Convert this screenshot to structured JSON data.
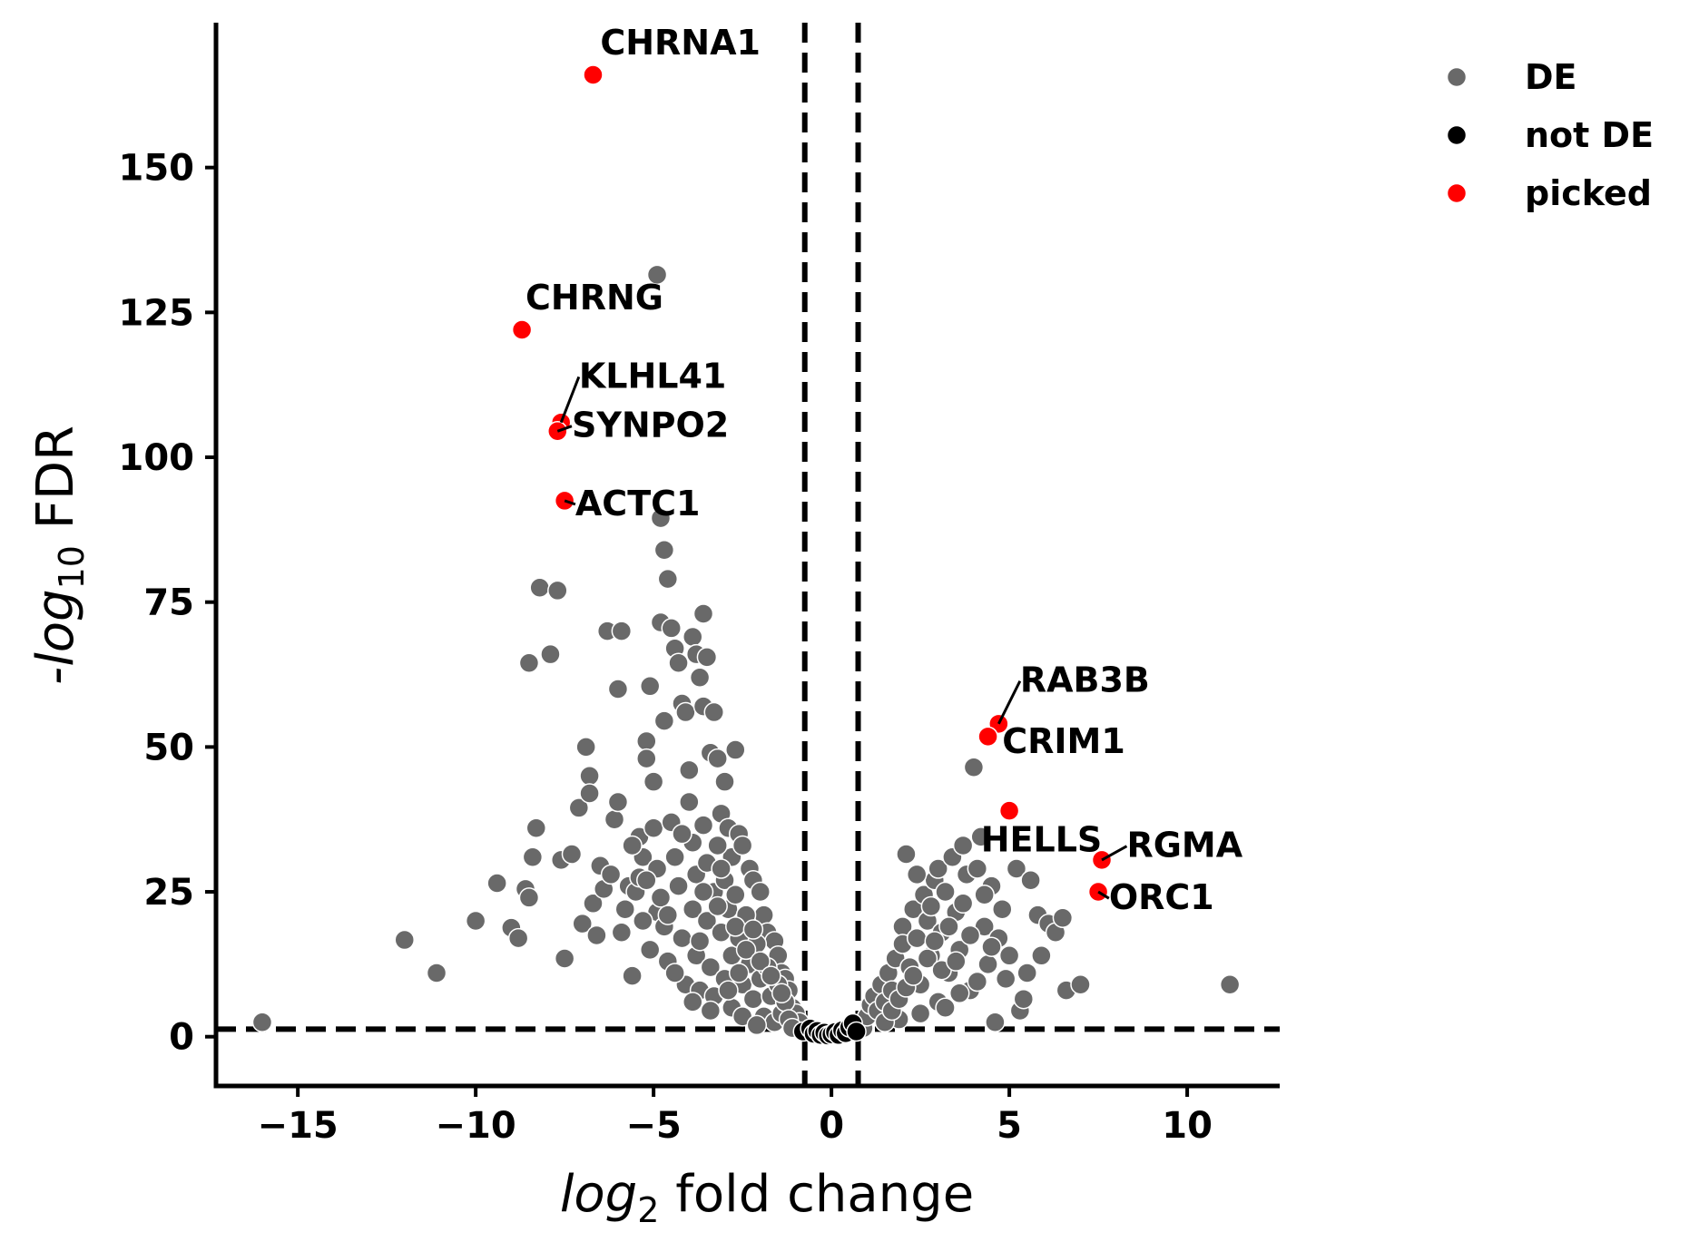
{
  "chart_data": {
    "type": "scatter",
    "xlabel_base": "log",
    "xlabel_sub": "2",
    "xlabel_rest": " fold change",
    "ylabel_prefix": "-",
    "ylabel_base": "log",
    "ylabel_sub": "10",
    "ylabel_rest": " FDR",
    "xlim": [
      -17.3,
      12.6
    ],
    "ylim": [
      -8.5,
      175
    ],
    "xticks": [
      {
        "value": -15,
        "label": "−15"
      },
      {
        "value": -10,
        "label": "−10"
      },
      {
        "value": -5,
        "label": "−5"
      },
      {
        "value": 0,
        "label": "0"
      },
      {
        "value": 5,
        "label": "5"
      },
      {
        "value": 10,
        "label": "10"
      }
    ],
    "yticks": [
      {
        "value": 0,
        "label": "0"
      },
      {
        "value": 25,
        "label": "25"
      },
      {
        "value": 50,
        "label": "50"
      },
      {
        "value": 75,
        "label": "75"
      },
      {
        "value": 100,
        "label": "100"
      },
      {
        "value": 125,
        "label": "125"
      },
      {
        "value": 150,
        "label": "150"
      }
    ],
    "thresholds": {
      "x": [
        -0.75,
        0.75
      ],
      "y": 1.3
    },
    "legend": {
      "position": "upper-right-outside",
      "entries": [
        {
          "name": "DE",
          "color": "#696969"
        },
        {
          "name": "not DE",
          "color": "#000000"
        },
        {
          "name": "picked",
          "color": "#ff0000"
        }
      ]
    },
    "series": [
      {
        "name": "DE",
        "color": "#696969",
        "points": [
          [
            -16.0,
            2.5
          ],
          [
            -12.0,
            16.7
          ],
          [
            -11.1,
            11.0
          ],
          [
            -10.0,
            20.0
          ],
          [
            -9.4,
            26.5
          ],
          [
            -9.0,
            18.8
          ],
          [
            -8.8,
            17.0
          ],
          [
            -8.6,
            25.5
          ],
          [
            -8.5,
            24.0
          ],
          [
            -8.4,
            31.0
          ],
          [
            -8.3,
            36.0
          ],
          [
            -8.2,
            77.5
          ],
          [
            -8.5,
            64.5
          ],
          [
            -7.9,
            66.0
          ],
          [
            -7.7,
            77.0
          ],
          [
            -7.6,
            30.5
          ],
          [
            -7.5,
            13.5
          ],
          [
            -7.3,
            31.5
          ],
          [
            -7.1,
            39.5
          ],
          [
            -7.0,
            19.5
          ],
          [
            -6.9,
            50.0
          ],
          [
            -6.8,
            45.0
          ],
          [
            -6.8,
            42.0
          ],
          [
            -6.7,
            23.0
          ],
          [
            -6.6,
            17.5
          ],
          [
            -6.5,
            29.5
          ],
          [
            -6.4,
            25.5
          ],
          [
            -6.3,
            70.0
          ],
          [
            -6.2,
            28.0
          ],
          [
            -6.1,
            37.5
          ],
          [
            -6.0,
            60.0
          ],
          [
            -6.0,
            40.5
          ],
          [
            -5.9,
            70.0
          ],
          [
            -5.8,
            22.0
          ],
          [
            -5.7,
            26.0
          ],
          [
            -5.6,
            10.5
          ],
          [
            -5.5,
            25.0
          ],
          [
            -5.4,
            34.5
          ],
          [
            -5.4,
            27.5
          ],
          [
            -5.3,
            31.0
          ],
          [
            -5.2,
            51.0
          ],
          [
            -5.2,
            48.0
          ],
          [
            -5.1,
            60.5
          ],
          [
            -5.0,
            44.0
          ],
          [
            -5.0,
            36.0
          ],
          [
            -4.9,
            21.5
          ],
          [
            -4.8,
            89.5
          ],
          [
            -4.7,
            84.0
          ],
          [
            -4.9,
            131.5
          ],
          [
            -4.8,
            71.5
          ],
          [
            -4.7,
            54.5
          ],
          [
            -4.6,
            79.0
          ],
          [
            -4.5,
            70.5
          ],
          [
            -4.4,
            67.0
          ],
          [
            -4.3,
            64.5
          ],
          [
            -4.2,
            57.5
          ],
          [
            -4.1,
            56.0
          ],
          [
            -4.0,
            46.0
          ],
          [
            -3.9,
            69.0
          ],
          [
            -3.8,
            66.0
          ],
          [
            -3.7,
            62.0
          ],
          [
            -3.6,
            73.0
          ],
          [
            -3.6,
            57.0
          ],
          [
            -3.5,
            65.5
          ],
          [
            -3.4,
            49.0
          ],
          [
            -3.3,
            56.0
          ],
          [
            -3.2,
            48.0
          ],
          [
            -3.1,
            38.5
          ],
          [
            -3.0,
            44.0
          ],
          [
            -2.9,
            36.0
          ],
          [
            -2.8,
            31.0
          ],
          [
            -2.7,
            49.5
          ],
          [
            -2.6,
            35.0
          ],
          [
            -2.5,
            33.0
          ],
          [
            -2.3,
            29.0
          ],
          [
            -2.2,
            27.0
          ],
          [
            -2.0,
            25.0
          ],
          [
            -1.9,
            21.0
          ],
          [
            -1.8,
            18.0
          ],
          [
            -1.6,
            16.5
          ],
          [
            -1.5,
            14.0
          ],
          [
            -1.4,
            11.0
          ],
          [
            -1.3,
            10.0
          ],
          [
            -1.2,
            8.0
          ],
          [
            -1.1,
            5.0
          ],
          [
            -1.0,
            4.0
          ],
          [
            -0.9,
            2.5
          ],
          [
            -5.9,
            18.0
          ],
          [
            -5.6,
            33.0
          ],
          [
            -5.3,
            20.0
          ],
          [
            -5.1,
            15.0
          ],
          [
            -4.9,
            29.0
          ],
          [
            -4.8,
            24.0
          ],
          [
            -4.7,
            19.0
          ],
          [
            -4.6,
            13.0
          ],
          [
            -4.5,
            37.0
          ],
          [
            -4.4,
            31.0
          ],
          [
            -4.3,
            26.0
          ],
          [
            -4.2,
            17.0
          ],
          [
            -4.1,
            9.0
          ],
          [
            -4.0,
            40.5
          ],
          [
            -3.9,
            33.5
          ],
          [
            -3.9,
            22.0
          ],
          [
            -3.8,
            28.0
          ],
          [
            -3.8,
            14.0
          ],
          [
            -3.7,
            8.0
          ],
          [
            -3.6,
            36.5
          ],
          [
            -3.5,
            30.0
          ],
          [
            -3.5,
            20.0
          ],
          [
            -3.4,
            12.0
          ],
          [
            -3.3,
            25.0
          ],
          [
            -3.3,
            7.0
          ],
          [
            -3.2,
            33.0
          ],
          [
            -3.1,
            18.0
          ],
          [
            -3.0,
            27.0
          ],
          [
            -3.0,
            10.0
          ],
          [
            -2.9,
            22.0
          ],
          [
            -2.8,
            14.0
          ],
          [
            -2.8,
            5.0
          ],
          [
            -2.7,
            24.5
          ],
          [
            -2.6,
            17.0
          ],
          [
            -2.5,
            9.0
          ],
          [
            -2.4,
            21.0
          ],
          [
            -2.3,
            12.5
          ],
          [
            -2.2,
            6.5
          ],
          [
            -2.1,
            16.0
          ],
          [
            -2.0,
            10.0
          ],
          [
            -1.9,
            3.5
          ],
          [
            -1.8,
            12.0
          ],
          [
            -1.7,
            7.0
          ],
          [
            -1.6,
            2.5
          ],
          [
            -1.5,
            9.0
          ],
          [
            -1.4,
            4.0
          ],
          [
            -1.3,
            6.0
          ],
          [
            -1.2,
            3.0
          ],
          [
            -1.1,
            1.5
          ],
          [
            -5.2,
            27.0
          ],
          [
            -4.6,
            21.0
          ],
          [
            -4.2,
            35.0
          ],
          [
            -3.6,
            25.0
          ],
          [
            -3.1,
            29.0
          ],
          [
            -2.7,
            19.0
          ],
          [
            -2.4,
            15.0
          ],
          [
            -2.0,
            13.0
          ],
          [
            -1.7,
            10.5
          ],
          [
            -1.4,
            7.5
          ],
          [
            -4.4,
            11.0
          ],
          [
            -3.9,
            6.0
          ],
          [
            -3.4,
            4.5
          ],
          [
            -2.9,
            8.0
          ],
          [
            -2.5,
            3.5
          ],
          [
            -2.1,
            2.0
          ],
          [
            -3.7,
            16.5
          ],
          [
            -3.2,
            22.5
          ],
          [
            -2.6,
            11.0
          ],
          [
            -2.2,
            18.5
          ],
          [
            0.9,
            1.5
          ],
          [
            1.0,
            3.5
          ],
          [
            1.1,
            5.5
          ],
          [
            1.2,
            7.0
          ],
          [
            1.3,
            4.5
          ],
          [
            1.4,
            9.0
          ],
          [
            1.5,
            6.0
          ],
          [
            1.6,
            11.0
          ],
          [
            1.7,
            8.0
          ],
          [
            1.8,
            13.5
          ],
          [
            1.9,
            3.0
          ],
          [
            2.0,
            19.0
          ],
          [
            2.0,
            16.0
          ],
          [
            2.1,
            31.5
          ],
          [
            2.2,
            12.0
          ],
          [
            2.3,
            22.0
          ],
          [
            2.4,
            17.0
          ],
          [
            2.5,
            9.0
          ],
          [
            2.6,
            24.5
          ],
          [
            2.7,
            20.0
          ],
          [
            2.8,
            14.0
          ],
          [
            2.9,
            27.0
          ],
          [
            3.0,
            29.0
          ],
          [
            3.0,
            6.0
          ],
          [
            3.1,
            18.0
          ],
          [
            3.2,
            25.0
          ],
          [
            3.3,
            11.0
          ],
          [
            3.4,
            31.0
          ],
          [
            3.5,
            21.5
          ],
          [
            3.6,
            15.0
          ],
          [
            3.7,
            33.0
          ],
          [
            3.8,
            28.0
          ],
          [
            3.9,
            8.0
          ],
          [
            4.0,
            46.5
          ],
          [
            4.1,
            29.0
          ],
          [
            4.2,
            34.5
          ],
          [
            4.3,
            19.0
          ],
          [
            4.4,
            12.5
          ],
          [
            4.5,
            26.0
          ],
          [
            4.6,
            2.5
          ],
          [
            4.7,
            17.0
          ],
          [
            4.8,
            22.0
          ],
          [
            4.9,
            10.0
          ],
          [
            5.0,
            14.0
          ],
          [
            5.2,
            29.0
          ],
          [
            5.3,
            4.5
          ],
          [
            5.4,
            6.5
          ],
          [
            5.5,
            11.0
          ],
          [
            5.6,
            27.0
          ],
          [
            5.8,
            21.0
          ],
          [
            5.9,
            14.0
          ],
          [
            6.1,
            19.5
          ],
          [
            6.3,
            18.0
          ],
          [
            6.5,
            20.5
          ],
          [
            6.6,
            8.0
          ],
          [
            7.0,
            9.0
          ],
          [
            11.2,
            9.0
          ],
          [
            1.5,
            2.5
          ],
          [
            1.7,
            4.5
          ],
          [
            1.9,
            6.5
          ],
          [
            2.1,
            8.5
          ],
          [
            2.3,
            10.5
          ],
          [
            2.5,
            4.0
          ],
          [
            2.7,
            13.5
          ],
          [
            2.9,
            16.5
          ],
          [
            3.1,
            11.5
          ],
          [
            3.3,
            19.0
          ],
          [
            3.5,
            13.0
          ],
          [
            3.7,
            23.0
          ],
          [
            3.9,
            17.5
          ],
          [
            4.1,
            9.5
          ],
          [
            4.3,
            24.5
          ],
          [
            4.5,
            15.5
          ],
          [
            2.4,
            28.0
          ],
          [
            2.8,
            22.5
          ],
          [
            3.2,
            5.0
          ],
          [
            3.6,
            7.5
          ]
        ]
      },
      {
        "name": "not DE",
        "color": "#000000",
        "points": [
          [
            -0.8,
            0.9
          ],
          [
            -0.6,
            1.4
          ],
          [
            -0.5,
            0.5
          ],
          [
            -0.4,
            1.0
          ],
          [
            -0.3,
            0.3
          ],
          [
            -0.2,
            0.7
          ],
          [
            -0.1,
            0.2
          ],
          [
            0.0,
            0.4
          ],
          [
            0.1,
            0.8
          ],
          [
            0.2,
            0.3
          ],
          [
            0.3,
            1.1
          ],
          [
            0.4,
            0.6
          ],
          [
            0.5,
            1.6
          ],
          [
            0.6,
            2.3
          ],
          [
            0.7,
            0.9
          ]
        ]
      },
      {
        "name": "picked",
        "color": "#ff0000",
        "points": [
          [
            -6.7,
            166.0
          ],
          [
            -8.7,
            122.0
          ],
          [
            -7.6,
            106.0
          ],
          [
            -7.7,
            104.5
          ],
          [
            -7.5,
            92.5
          ],
          [
            4.7,
            54.0
          ],
          [
            4.4,
            51.8
          ],
          [
            5.0,
            39.0
          ],
          [
            7.6,
            30.5
          ],
          [
            7.5,
            25.0
          ]
        ]
      }
    ],
    "annotations": [
      {
        "text": "CHRNA1",
        "x": -6.7,
        "y": 166.0,
        "tx": -6.5,
        "ty": 169.5,
        "line": false
      },
      {
        "text": "CHRNG",
        "x": -8.7,
        "y": 122.0,
        "tx": -8.6,
        "ty": 125.5,
        "line": false
      },
      {
        "text": "KLHL41",
        "x": -7.6,
        "y": 106.0,
        "tx": -7.1,
        "ty": 112.0,
        "line": true
      },
      {
        "text": "SYNPO2",
        "x": -7.7,
        "y": 104.5,
        "tx": -7.3,
        "ty": 103.5,
        "line": true
      },
      {
        "text": "ACTC1",
        "x": -7.5,
        "y": 92.5,
        "tx": -7.2,
        "ty": 90.0,
        "line": true
      },
      {
        "text": "RAB3B",
        "x": 4.7,
        "y": 54.0,
        "tx": 5.3,
        "ty": 59.5,
        "line": true
      },
      {
        "text": "CRIM1",
        "x": 4.4,
        "y": 51.8,
        "tx": 4.8,
        "ty": 49.0,
        "line": false
      },
      {
        "text": "HELLS",
        "x": 5.0,
        "y": 39.0,
        "tx": 4.2,
        "ty": 32.0,
        "line": false
      },
      {
        "text": "RGMA",
        "x": 7.6,
        "y": 30.5,
        "tx": 8.3,
        "ty": 31.0,
        "line": true
      },
      {
        "text": "ORC1",
        "x": 7.5,
        "y": 25.0,
        "tx": 7.8,
        "ty": 22.0,
        "line": true
      }
    ]
  }
}
